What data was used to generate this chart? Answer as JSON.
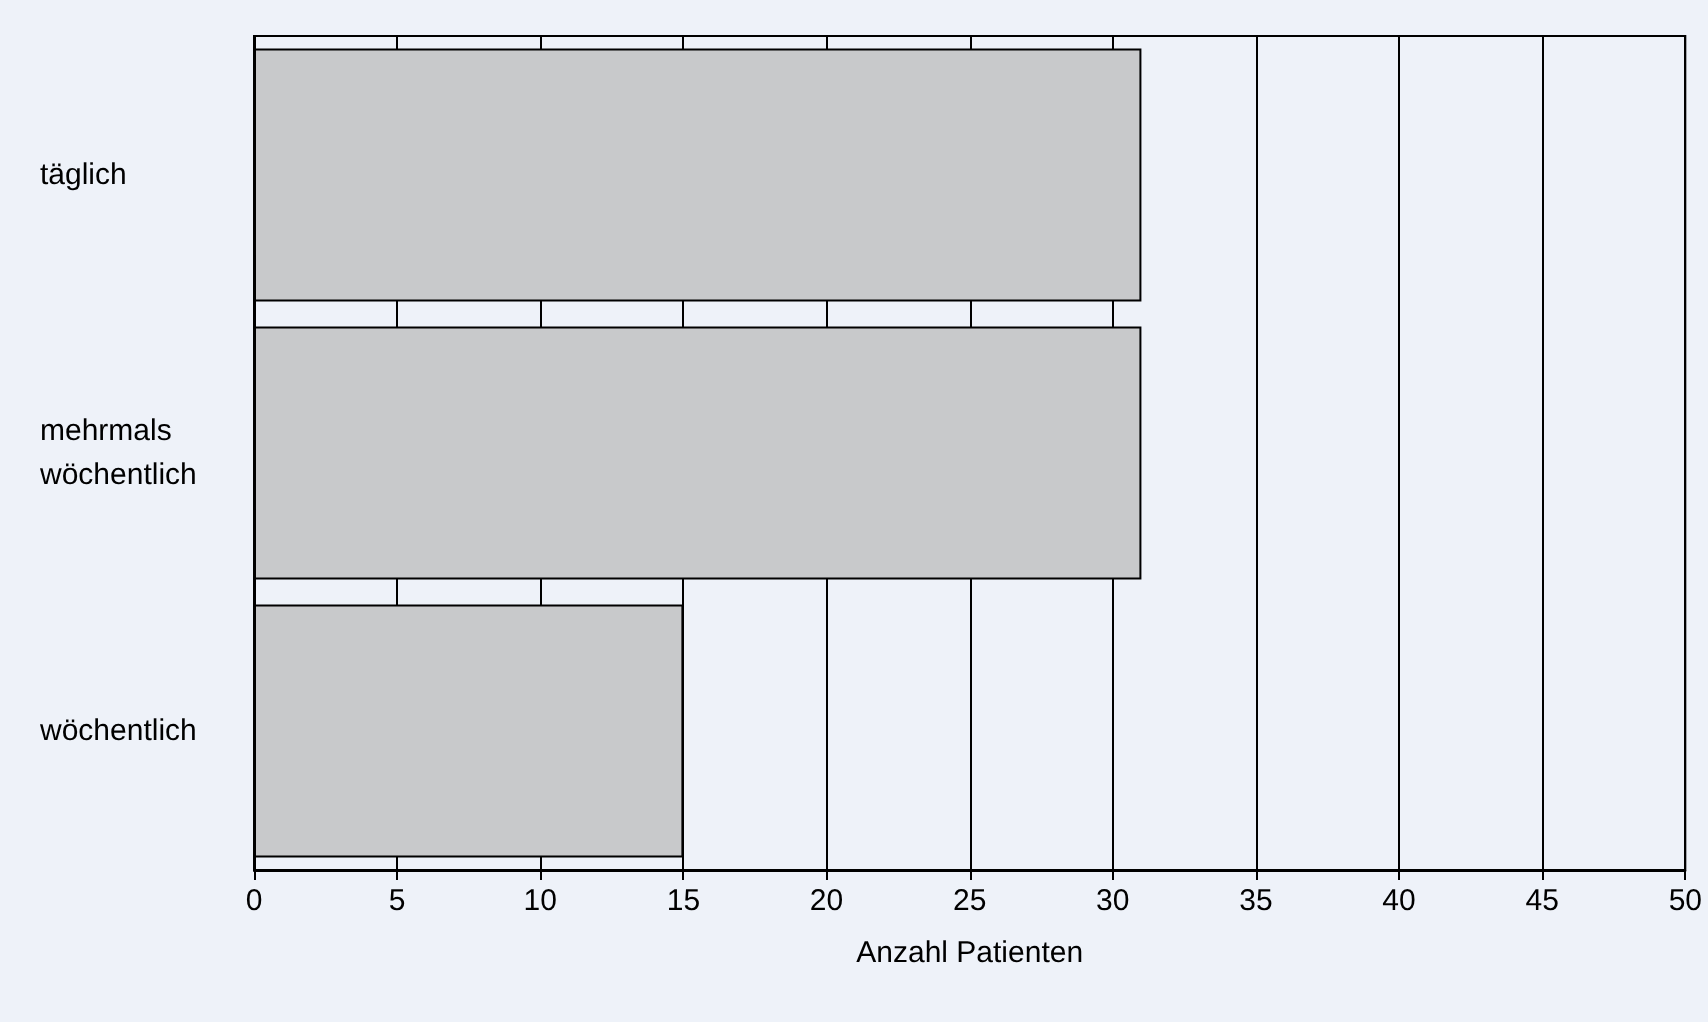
{
  "chart_data": {
    "type": "bar",
    "orientation": "horizontal",
    "xlabel": "Anzahl Patienten",
    "categories": [
      "täglich",
      "mehrmals wöchentlich",
      "wöchentlich"
    ],
    "series": [
      {
        "color": "#c8c9cb",
        "values": [
          31,
          31,
          15
        ]
      }
    ],
    "xlim": [
      0,
      50
    ],
    "xticks": [
      0,
      5,
      10,
      15,
      20,
      25,
      30,
      35,
      40,
      45,
      50
    ],
    "grid": "x"
  }
}
